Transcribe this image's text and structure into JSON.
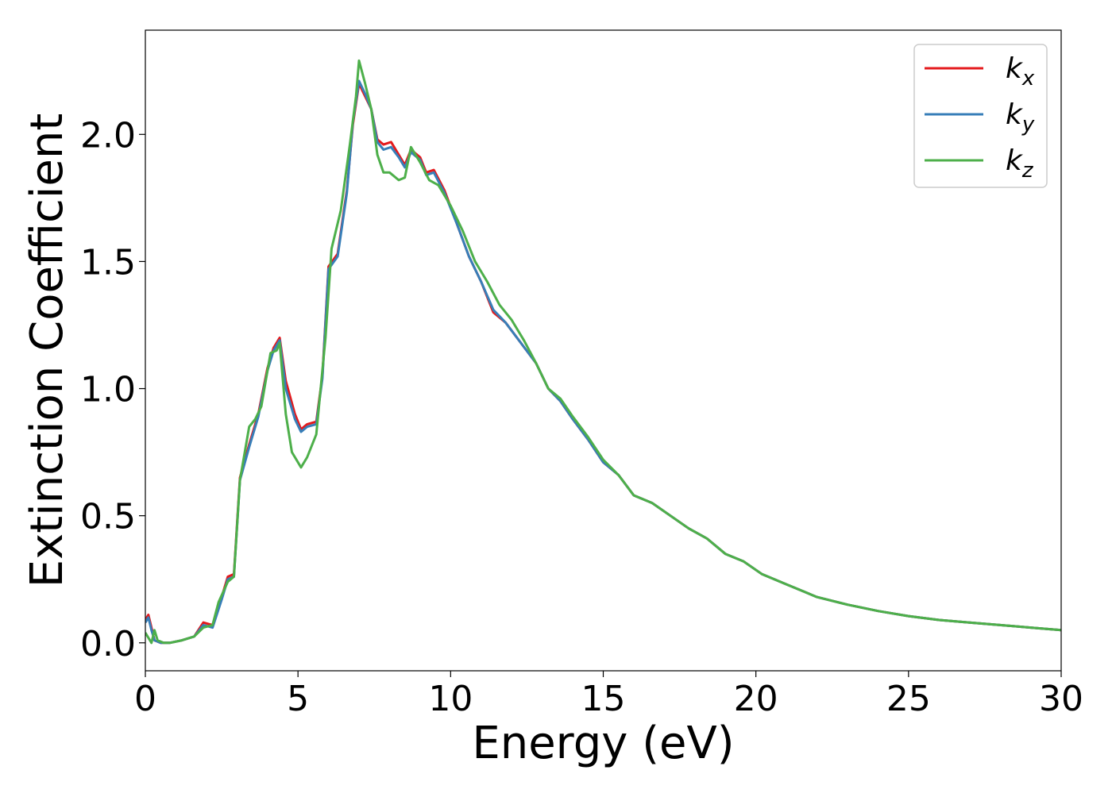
{
  "chart_data": {
    "type": "line",
    "title": "",
    "xlabel": "Energy (eV)",
    "ylabel": "Extinction Coefficient",
    "xlim": [
      0,
      30
    ],
    "ylim": [
      -0.11,
      2.41
    ],
    "xticks": [
      0,
      5,
      10,
      15,
      20,
      25,
      30
    ],
    "xtick_labels": [
      "0",
      "5",
      "10",
      "15",
      "20",
      "25",
      "30"
    ],
    "yticks": [
      0.0,
      0.5,
      1.0,
      1.5,
      2.0
    ],
    "ytick_labels": [
      "0.0",
      "0.5",
      "1.0",
      "1.5",
      "2.0"
    ],
    "grid": false,
    "legend_position": "top-right",
    "series": [
      {
        "name": "k_x",
        "label_main": "k",
        "label_sub": "x",
        "color": "#e41a1c",
        "points": [
          [
            0,
            0.09
          ],
          [
            0.1,
            0.11
          ],
          [
            0.2,
            0.06
          ],
          [
            0.3,
            0.01
          ],
          [
            0.5,
            0.0
          ],
          [
            0.8,
            0.0
          ],
          [
            1.2,
            0.01
          ],
          [
            1.6,
            0.025
          ],
          [
            1.9,
            0.08
          ],
          [
            2.2,
            0.07
          ],
          [
            2.5,
            0.18
          ],
          [
            2.7,
            0.26
          ],
          [
            2.9,
            0.27
          ],
          [
            3.1,
            0.65
          ],
          [
            3.4,
            0.78
          ],
          [
            3.7,
            0.9
          ],
          [
            4.0,
            1.08
          ],
          [
            4.2,
            1.16
          ],
          [
            4.4,
            1.2
          ],
          [
            4.6,
            1.03
          ],
          [
            4.9,
            0.9
          ],
          [
            5.1,
            0.84
          ],
          [
            5.3,
            0.86
          ],
          [
            5.6,
            0.87
          ],
          [
            5.8,
            1.05
          ],
          [
            6.0,
            1.48
          ],
          [
            6.3,
            1.53
          ],
          [
            6.6,
            1.78
          ],
          [
            6.8,
            2.04
          ],
          [
            7.0,
            2.2
          ],
          [
            7.2,
            2.15
          ],
          [
            7.4,
            2.1
          ],
          [
            7.6,
            1.98
          ],
          [
            7.8,
            1.96
          ],
          [
            8.05,
            1.97
          ],
          [
            8.3,
            1.92
          ],
          [
            8.5,
            1.88
          ],
          [
            8.7,
            1.94
          ],
          [
            9.0,
            1.91
          ],
          [
            9.2,
            1.85
          ],
          [
            9.45,
            1.86
          ],
          [
            9.8,
            1.78
          ],
          [
            10.2,
            1.65
          ],
          [
            10.6,
            1.52
          ],
          [
            11.0,
            1.42
          ],
          [
            11.4,
            1.3
          ],
          [
            11.8,
            1.26
          ],
          [
            12.3,
            1.18
          ],
          [
            12.8,
            1.1
          ],
          [
            13.2,
            1.0
          ],
          [
            13.6,
            0.95
          ],
          [
            14.0,
            0.88
          ],
          [
            14.5,
            0.8
          ],
          [
            15.0,
            0.71
          ],
          [
            15.5,
            0.66
          ],
          [
            16.0,
            0.58
          ],
          [
            16.6,
            0.55
          ],
          [
            17.2,
            0.5
          ],
          [
            17.8,
            0.45
          ],
          [
            18.4,
            0.41
          ],
          [
            19.0,
            0.35
          ],
          [
            19.6,
            0.32
          ],
          [
            20.2,
            0.27
          ],
          [
            21.0,
            0.23
          ],
          [
            22.0,
            0.18
          ],
          [
            23.0,
            0.15
          ],
          [
            24.0,
            0.125
          ],
          [
            25.0,
            0.105
          ],
          [
            26.0,
            0.09
          ],
          [
            27.0,
            0.08
          ],
          [
            28.0,
            0.07
          ],
          [
            29.0,
            0.06
          ],
          [
            30.0,
            0.05
          ]
        ]
      },
      {
        "name": "k_y",
        "label_main": "k",
        "label_sub": "y",
        "color": "#377eb8",
        "points": [
          [
            0,
            0.08
          ],
          [
            0.1,
            0.1
          ],
          [
            0.2,
            0.05
          ],
          [
            0.3,
            0.01
          ],
          [
            0.5,
            0.0
          ],
          [
            0.8,
            0.0
          ],
          [
            1.2,
            0.01
          ],
          [
            1.6,
            0.025
          ],
          [
            1.9,
            0.07
          ],
          [
            2.2,
            0.06
          ],
          [
            2.5,
            0.17
          ],
          [
            2.7,
            0.25
          ],
          [
            2.9,
            0.26
          ],
          [
            3.1,
            0.64
          ],
          [
            3.4,
            0.77
          ],
          [
            3.7,
            0.89
          ],
          [
            4.0,
            1.07
          ],
          [
            4.2,
            1.15
          ],
          [
            4.4,
            1.19
          ],
          [
            4.6,
            1.0
          ],
          [
            4.9,
            0.88
          ],
          [
            5.1,
            0.83
          ],
          [
            5.3,
            0.85
          ],
          [
            5.6,
            0.86
          ],
          [
            5.8,
            1.04
          ],
          [
            6.0,
            1.47
          ],
          [
            6.3,
            1.52
          ],
          [
            6.6,
            1.77
          ],
          [
            6.8,
            2.05
          ],
          [
            7.0,
            2.21
          ],
          [
            7.2,
            2.16
          ],
          [
            7.4,
            2.1
          ],
          [
            7.6,
            1.97
          ],
          [
            7.8,
            1.94
          ],
          [
            8.05,
            1.95
          ],
          [
            8.3,
            1.91
          ],
          [
            8.5,
            1.87
          ],
          [
            8.7,
            1.93
          ],
          [
            9.0,
            1.9
          ],
          [
            9.2,
            1.84
          ],
          [
            9.45,
            1.85
          ],
          [
            9.8,
            1.77
          ],
          [
            10.2,
            1.65
          ],
          [
            10.6,
            1.52
          ],
          [
            11.0,
            1.42
          ],
          [
            11.4,
            1.31
          ],
          [
            11.8,
            1.26
          ],
          [
            12.3,
            1.18
          ],
          [
            12.8,
            1.1
          ],
          [
            13.2,
            1.0
          ],
          [
            13.6,
            0.95
          ],
          [
            14.0,
            0.88
          ],
          [
            14.5,
            0.8
          ],
          [
            15.0,
            0.71
          ],
          [
            15.5,
            0.66
          ],
          [
            16.0,
            0.58
          ],
          [
            16.6,
            0.55
          ],
          [
            17.2,
            0.5
          ],
          [
            17.8,
            0.45
          ],
          [
            18.4,
            0.41
          ],
          [
            19.0,
            0.35
          ],
          [
            19.6,
            0.32
          ],
          [
            20.2,
            0.27
          ],
          [
            21.0,
            0.23
          ],
          [
            22.0,
            0.18
          ],
          [
            23.0,
            0.15
          ],
          [
            24.0,
            0.125
          ],
          [
            25.0,
            0.105
          ],
          [
            26.0,
            0.09
          ],
          [
            27.0,
            0.08
          ],
          [
            28.0,
            0.07
          ],
          [
            29.0,
            0.06
          ],
          [
            30.0,
            0.05
          ]
        ]
      },
      {
        "name": "k_z",
        "label_main": "k",
        "label_sub": "z",
        "color": "#4daf4a",
        "points": [
          [
            0,
            0.04
          ],
          [
            0.1,
            0.02
          ],
          [
            0.2,
            0.0
          ],
          [
            0.3,
            0.05
          ],
          [
            0.4,
            0.01
          ],
          [
            0.6,
            0.0
          ],
          [
            0.8,
            0.0
          ],
          [
            1.2,
            0.01
          ],
          [
            1.6,
            0.025
          ],
          [
            1.9,
            0.06
          ],
          [
            2.2,
            0.07
          ],
          [
            2.4,
            0.16
          ],
          [
            2.7,
            0.24
          ],
          [
            2.9,
            0.26
          ],
          [
            3.1,
            0.64
          ],
          [
            3.4,
            0.85
          ],
          [
            3.6,
            0.88
          ],
          [
            3.8,
            0.93
          ],
          [
            4.1,
            1.14
          ],
          [
            4.3,
            1.15
          ],
          [
            4.4,
            1.18
          ],
          [
            4.6,
            0.9
          ],
          [
            4.8,
            0.75
          ],
          [
            5.1,
            0.69
          ],
          [
            5.3,
            0.73
          ],
          [
            5.6,
            0.82
          ],
          [
            5.9,
            1.2
          ],
          [
            6.1,
            1.55
          ],
          [
            6.4,
            1.7
          ],
          [
            6.7,
            1.96
          ],
          [
            6.9,
            2.15
          ],
          [
            7.0,
            2.29
          ],
          [
            7.2,
            2.2
          ],
          [
            7.4,
            2.1
          ],
          [
            7.6,
            1.92
          ],
          [
            7.8,
            1.85
          ],
          [
            8.0,
            1.85
          ],
          [
            8.3,
            1.82
          ],
          [
            8.5,
            1.83
          ],
          [
            8.7,
            1.95
          ],
          [
            9.0,
            1.89
          ],
          [
            9.3,
            1.82
          ],
          [
            9.6,
            1.8
          ],
          [
            10.0,
            1.72
          ],
          [
            10.4,
            1.62
          ],
          [
            10.8,
            1.5
          ],
          [
            11.2,
            1.42
          ],
          [
            11.6,
            1.33
          ],
          [
            12.0,
            1.27
          ],
          [
            12.4,
            1.19
          ],
          [
            12.8,
            1.1
          ],
          [
            13.2,
            1.0
          ],
          [
            13.6,
            0.96
          ],
          [
            14.0,
            0.89
          ],
          [
            14.5,
            0.81
          ],
          [
            15.0,
            0.72
          ],
          [
            15.5,
            0.66
          ],
          [
            16.0,
            0.58
          ],
          [
            16.6,
            0.55
          ],
          [
            17.2,
            0.5
          ],
          [
            17.8,
            0.45
          ],
          [
            18.4,
            0.41
          ],
          [
            19.0,
            0.35
          ],
          [
            19.6,
            0.32
          ],
          [
            20.2,
            0.27
          ],
          [
            21.0,
            0.23
          ],
          [
            22.0,
            0.18
          ],
          [
            23.0,
            0.15
          ],
          [
            24.0,
            0.125
          ],
          [
            25.0,
            0.105
          ],
          [
            26.0,
            0.09
          ],
          [
            27.0,
            0.08
          ],
          [
            28.0,
            0.07
          ],
          [
            29.0,
            0.06
          ],
          [
            30.0,
            0.05
          ]
        ]
      }
    ]
  }
}
